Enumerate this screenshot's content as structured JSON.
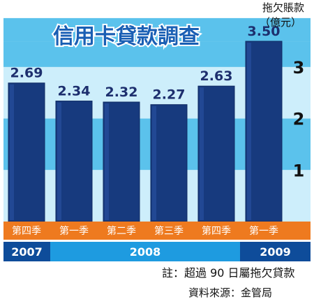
{
  "chart_data": {
    "type": "bar",
    "title": "信用卡貸款調查",
    "unit_line1": "拖欠賬款",
    "unit_line2": "（億元）",
    "categories": [
      "第四季",
      "第一季",
      "第二季",
      "第三季",
      "第四季",
      "第一季"
    ],
    "years": [
      {
        "label": "2007",
        "span": [
          0,
          0
        ]
      },
      {
        "label": "2008",
        "span": [
          1,
          4
        ]
      },
      {
        "label": "2009",
        "span": [
          5,
          5
        ]
      }
    ],
    "values": [
      2.69,
      2.34,
      2.32,
      2.27,
      2.63,
      3.5
    ],
    "value_labels": [
      "2.69",
      "2.34",
      "2.32",
      "2.27",
      "2.63",
      "3.50"
    ],
    "yticks": [
      "1",
      "2",
      "3"
    ],
    "ylim": [
      0,
      3.5
    ],
    "note": "註：超過 90 日屬拖欠貸款",
    "source": "資料來源：金管局",
    "colors": {
      "bar": "#173a7e",
      "bar_edge": "#0f2a63",
      "band_dark": "#5bc2ec",
      "band_light": "#cdeefb",
      "category_bar": "#ee7a1f",
      "year_bar": "#1e9be0",
      "year_bar_dark": "#0e4c9a",
      "title": "#1a5fb4"
    }
  }
}
